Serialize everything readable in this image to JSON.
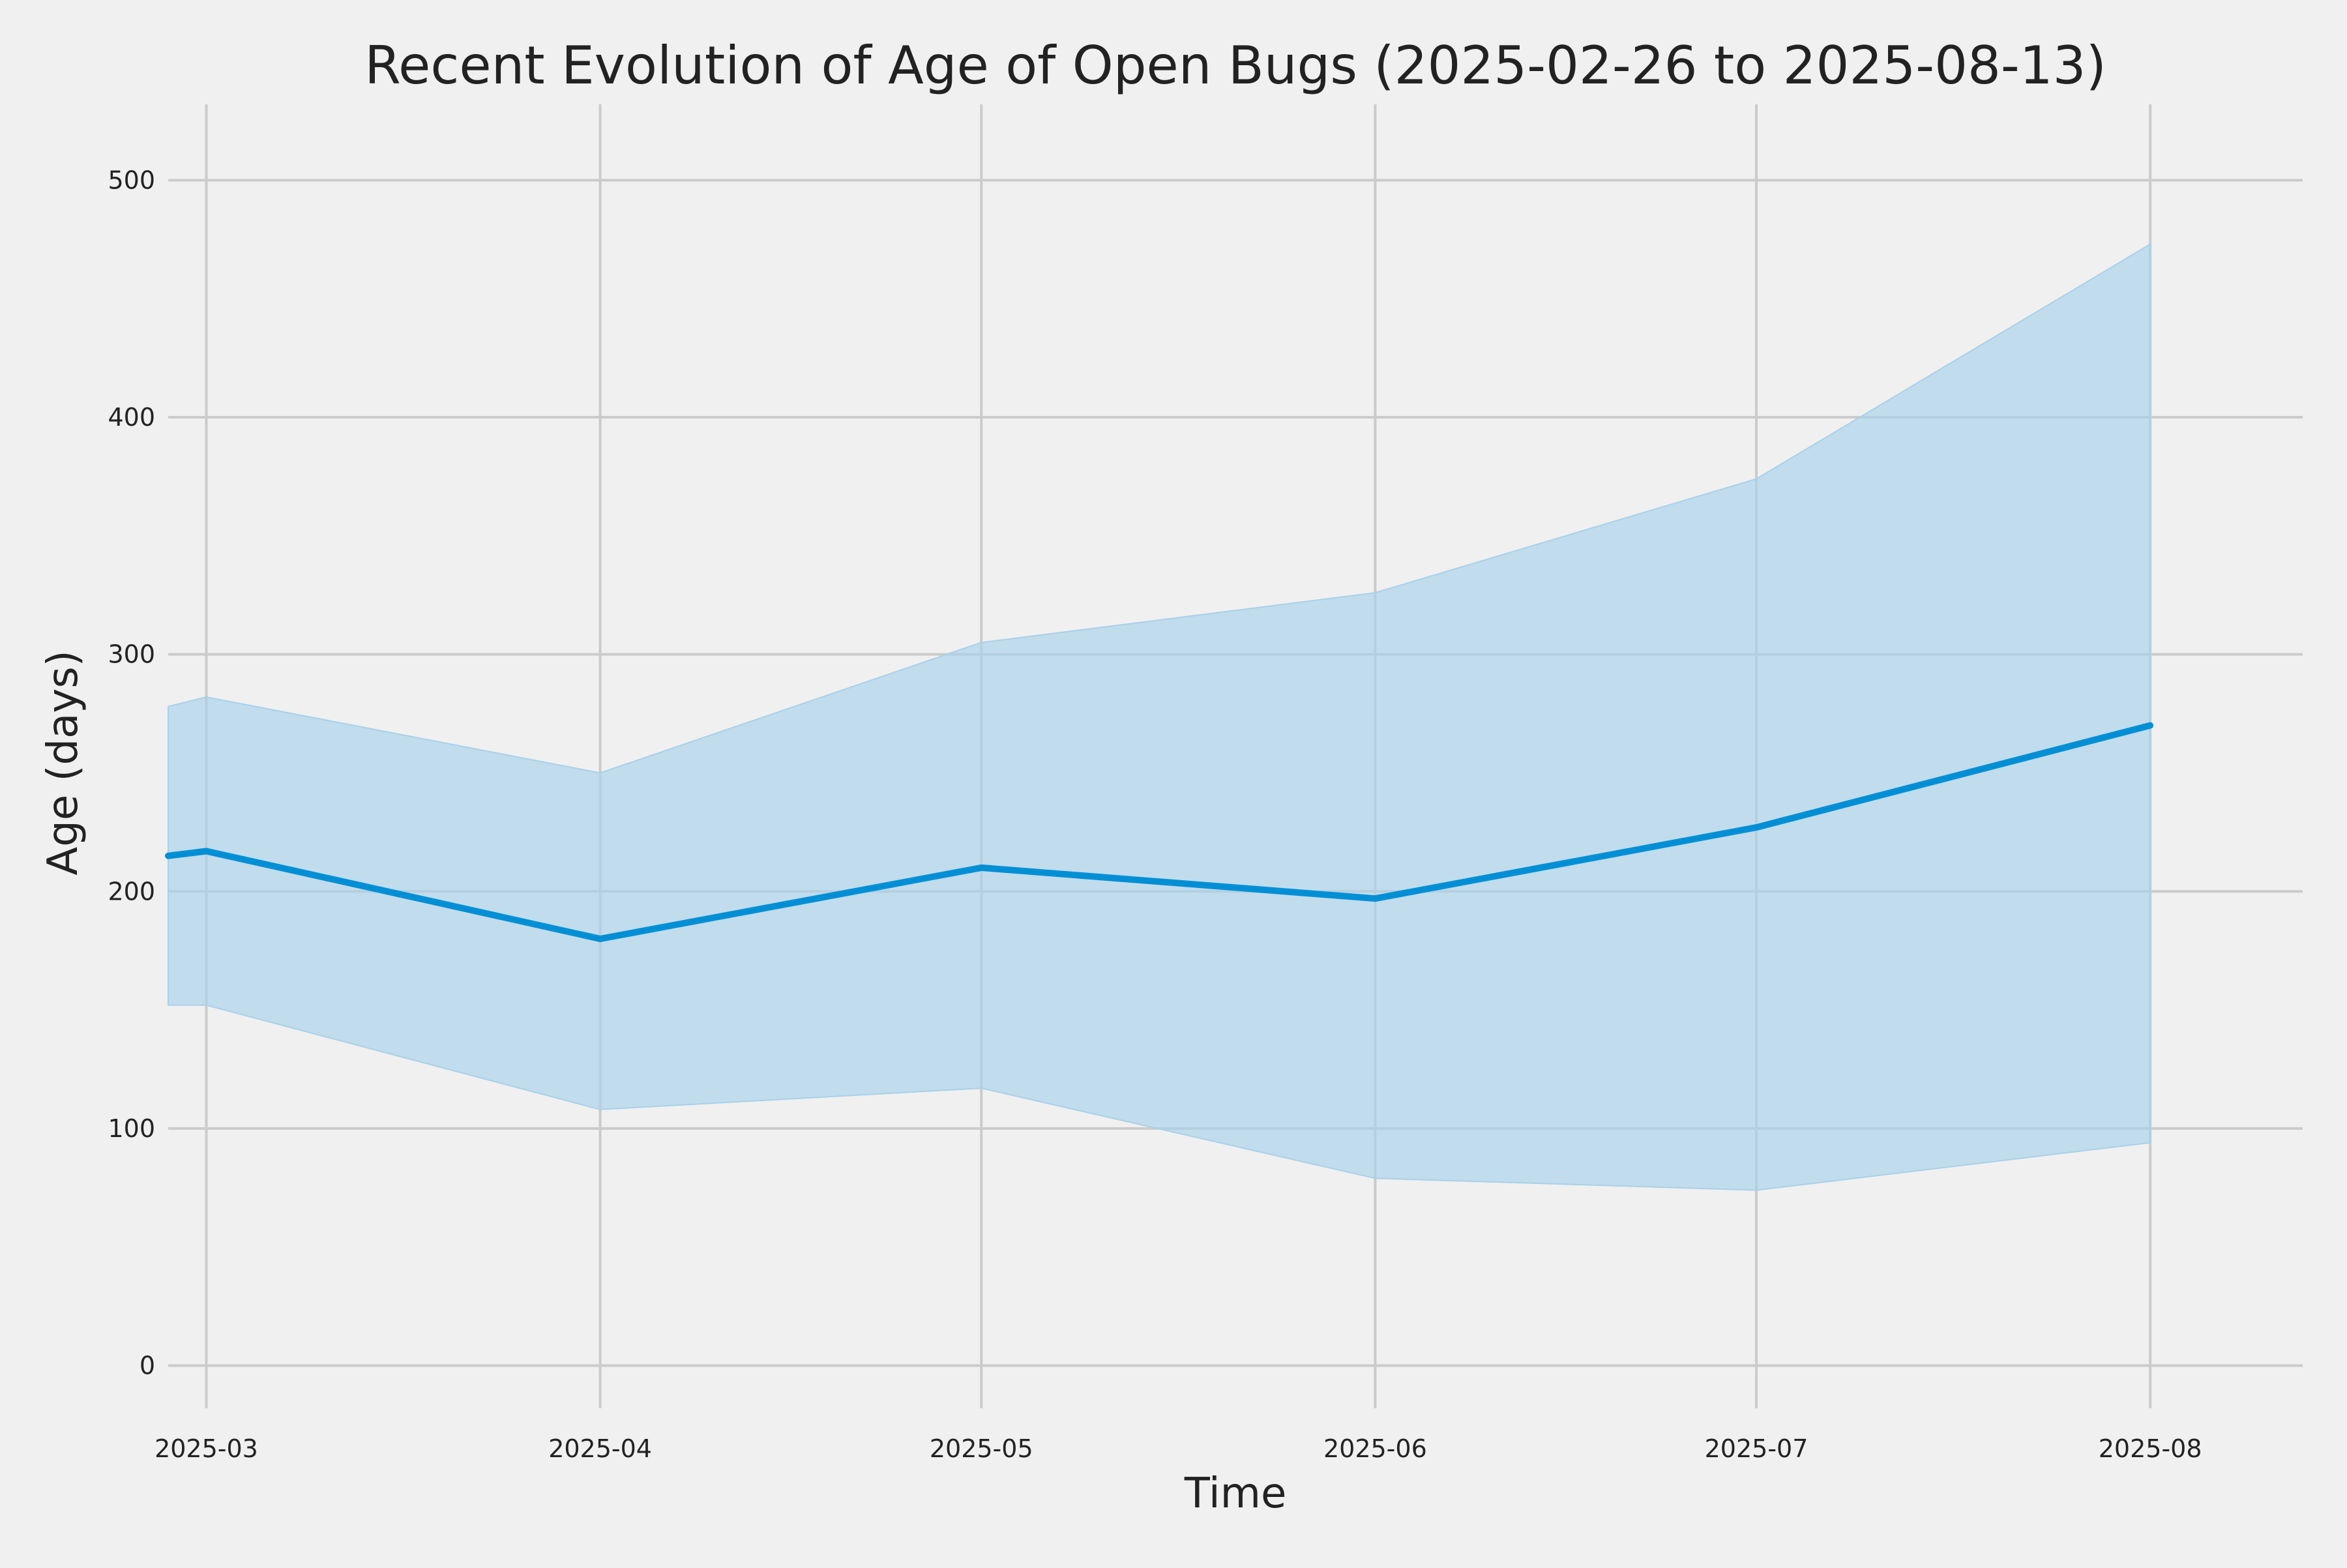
{
  "chart_data": {
    "type": "line",
    "title": "Recent Evolution of Age of Open Bugs (2025-02-26 to 2025-08-13)",
    "xlabel": "Time",
    "ylabel": "Age (days)",
    "x_ticks": [
      "2025-03",
      "2025-04",
      "2025-05",
      "2025-06",
      "2025-07",
      "2025-08"
    ],
    "y_ticks": [
      "0",
      "100",
      "200",
      "300",
      "400",
      "500"
    ],
    "ylim": [
      -18,
      532
    ],
    "xlim": [
      "2025-02-26",
      "2025-08-13"
    ],
    "grid": true,
    "legend": "none",
    "colors": {
      "line": "#008fd5",
      "band": "#a8d1ea",
      "background": "#f0f0f0",
      "grid": "#cbcbcb"
    },
    "series": [
      {
        "x": [
          "2025-02-26",
          "2025-03-01",
          "2025-04-01",
          "2025-05-01",
          "2025-06-01",
          "2025-07-01",
          "2025-08-01"
        ],
        "values": [
          215,
          217,
          180,
          210,
          197,
          227,
          270
        ],
        "upper": [
          278,
          282,
          250,
          305,
          326,
          374,
          473
        ],
        "lower": [
          152,
          152,
          108,
          117,
          79,
          74,
          94
        ]
      }
    ]
  }
}
